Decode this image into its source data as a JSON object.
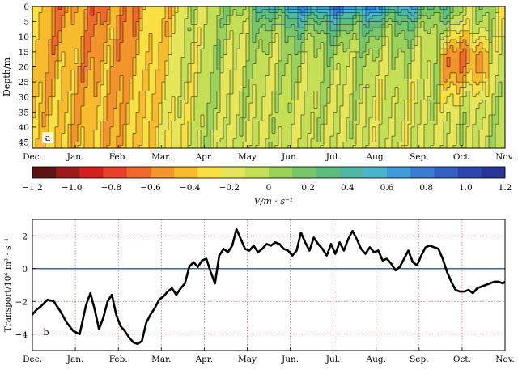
{
  "chart_data": [
    {
      "type": "heatmap",
      "panel_label": "a",
      "ylabel": "Depth/m",
      "colorbar_label": "V/m · s⁻¹",
      "x_tick_labels": [
        "Dec.",
        "Jan.",
        "Feb.",
        "Mar.",
        "Apr.",
        "May",
        "Jun.",
        "Jul.",
        "Aug.",
        "Sep.",
        "Oct.",
        "Nov."
      ],
      "y_ticks": [
        0,
        5,
        10,
        15,
        20,
        25,
        30,
        35,
        40,
        45
      ],
      "ylim": [
        47,
        0
      ],
      "colorbar_ticks": [
        -1.2,
        -1.0,
        -0.8,
        -0.6,
        -0.4,
        -0.2,
        0,
        0.2,
        0.4,
        0.6,
        0.8,
        1.0,
        1.2
      ],
      "colorbar_tick_labels": [
        "−1.2",
        "−1.0",
        "−0.8",
        "−0.6",
        "−0.4",
        "−0.2",
        "0",
        "0.2",
        "0.4",
        "0.6",
        "0.8",
        "1.0",
        "1.2"
      ],
      "colorbar_colors": [
        "#5a1414",
        "#9b1b1b",
        "#d42020",
        "#e8402a",
        "#ef6a2b",
        "#f3942c",
        "#f8bb2e",
        "#fbe044",
        "#e6e65a",
        "#c4de55",
        "#9cd25a",
        "#79c66a",
        "#5dbd7f",
        "#4fb8a4",
        "#4bb5cc",
        "#3f9cd8",
        "#3a7dd0",
        "#3360c2",
        "#2d46ad",
        "#283496"
      ],
      "monthly_surface_mean": [
        -0.45,
        -0.55,
        -0.6,
        -0.35,
        -0.05,
        0.1,
        0.45,
        0.55,
        0.5,
        0.35,
        0.1,
        -0.1
      ]
    },
    {
      "type": "line",
      "panel_label": "b",
      "ylabel": "Transport/10⁶ m³ · s⁻¹",
      "x_tick_labels": [
        "Dec.",
        "Jan.",
        "Feb.",
        "Mar.",
        "Apr.",
        "May",
        "Jun.",
        "Jul.",
        "Aug.",
        "Sep.",
        "Oct.",
        "Nov."
      ],
      "y_ticks": [
        2,
        0,
        -2,
        -4
      ],
      "y_tick_labels": [
        "2",
        "0",
        "−2",
        "−4"
      ],
      "ylim": [
        -5,
        3
      ],
      "grid": true,
      "zero_line_color": "#3a5fcd",
      "series": [
        {
          "x": [
            0,
            0.1,
            0.2,
            0.35,
            0.5,
            0.65,
            0.8,
            0.95,
            1.1,
            1.25,
            1.35,
            1.45,
            1.55,
            1.65,
            1.75,
            1.85,
            1.95,
            2.05,
            2.15,
            2.25,
            2.35,
            2.45,
            2.55,
            2.65,
            2.75,
            2.85,
            2.95,
            3.05,
            3.15,
            3.25,
            3.35,
            3.45,
            3.55,
            3.65,
            3.75,
            3.85,
            3.95,
            4.05,
            4.15,
            4.25,
            4.35,
            4.45,
            4.55,
            4.65,
            4.75,
            4.85,
            4.95,
            5.05,
            5.15,
            5.25,
            5.35,
            5.45,
            5.55,
            5.65,
            5.75,
            5.85,
            5.95,
            6.05,
            6.15,
            6.25,
            6.35,
            6.45,
            6.55,
            6.65,
            6.75,
            6.85,
            6.95,
            7.05,
            7.15,
            7.25,
            7.35,
            7.45,
            7.55,
            7.65,
            7.75,
            7.85,
            7.95,
            8.05,
            8.15,
            8.25,
            8.35,
            8.45,
            8.55,
            8.65,
            8.75,
            8.85,
            8.95,
            9.05,
            9.15,
            9.25,
            9.35,
            9.45,
            9.55,
            9.65,
            9.75,
            9.85,
            9.95,
            10.05,
            10.15,
            10.25,
            10.35,
            10.45,
            10.55,
            10.65,
            10.75,
            10.85,
            10.95,
            11.05
          ],
          "y": [
            -2.8,
            -2.5,
            -2.3,
            -1.9,
            -2.0,
            -2.6,
            -3.3,
            -3.8,
            -4.0,
            -2.2,
            -1.5,
            -2.5,
            -3.7,
            -3.0,
            -2.0,
            -1.6,
            -2.8,
            -3.5,
            -3.8,
            -4.2,
            -4.5,
            -4.6,
            -4.4,
            -3.3,
            -2.8,
            -2.4,
            -1.9,
            -1.7,
            -1.4,
            -1.2,
            -1.6,
            -1.2,
            -0.9,
            0.1,
            0.4,
            0.1,
            0.5,
            0.6,
            -0.2,
            -0.9,
            0.8,
            1.2,
            1.0,
            1.4,
            2.4,
            1.8,
            1.2,
            1.1,
            1.4,
            1.0,
            1.2,
            1.5,
            1.4,
            1.6,
            1.5,
            1.2,
            1.1,
            0.8,
            1.1,
            2.2,
            1.6,
            1.1,
            1.9,
            1.5,
            1.2,
            0.8,
            1.5,
            0.9,
            1.6,
            1.1,
            1.8,
            2.3,
            1.8,
            1.2,
            0.9,
            1.3,
            1.0,
            1.1,
            0.5,
            0.6,
            0.3,
            -0.1,
            0.1,
            0.6,
            1.1,
            0.4,
            0.2,
            0.8,
            1.3,
            1.4,
            1.3,
            1.2,
            0.6,
            -0.2,
            -0.8,
            -1.3,
            -1.4,
            -1.4,
            -1.3,
            -1.5,
            -1.2,
            -1.1,
            -1.0,
            -0.9,
            -0.8,
            -0.8,
            -0.9,
            -0.7
          ]
        }
      ]
    }
  ]
}
